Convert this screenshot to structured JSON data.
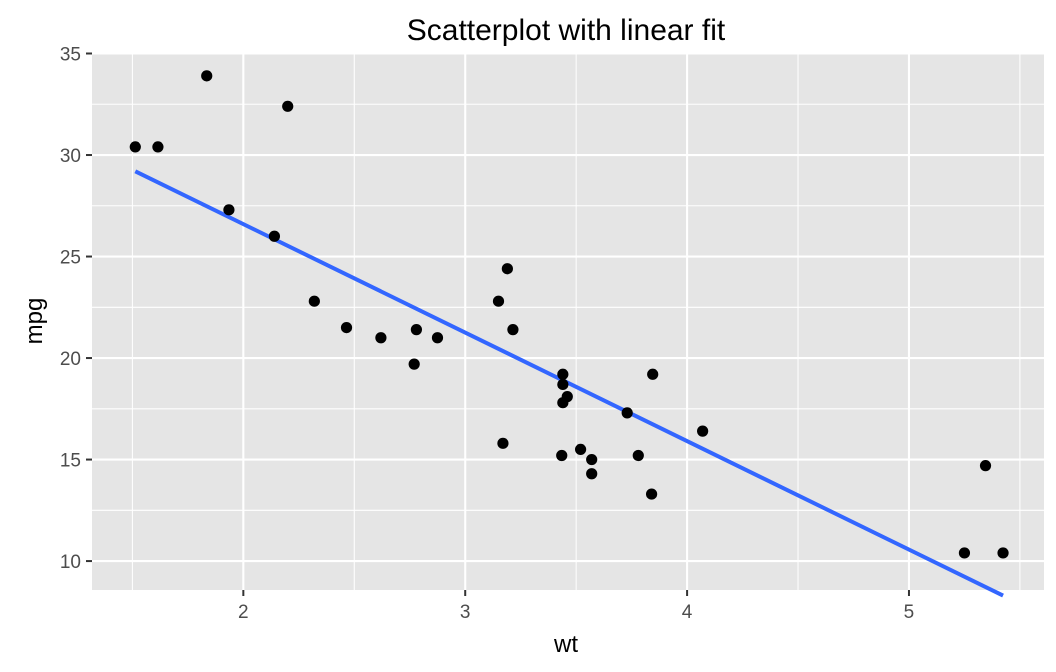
{
  "chart_data": {
    "type": "scatter",
    "title": "Scatterplot with linear fit",
    "xlabel": "wt",
    "ylabel": "mpg",
    "xlim": [
      1.3179,
      5.6086
    ],
    "ylim": [
      8.575,
      35.025
    ],
    "x_ticks": [
      2,
      3,
      4,
      5
    ],
    "y_ticks": [
      10,
      15,
      20,
      25,
      30,
      35
    ],
    "grid": true,
    "legend": "none",
    "colors": {
      "panel": "#e5e5e5",
      "points": "#000000",
      "fit_line": "#3366ff"
    },
    "series": [
      {
        "values": [
          {
            "x": 2.62,
            "y": 21.0
          },
          {
            "x": 2.875,
            "y": 21.0
          },
          {
            "x": 2.32,
            "y": 22.8
          },
          {
            "x": 3.215,
            "y": 21.4
          },
          {
            "x": 3.44,
            "y": 18.7
          },
          {
            "x": 3.46,
            "y": 18.1
          },
          {
            "x": 3.57,
            "y": 14.3
          },
          {
            "x": 3.19,
            "y": 24.4
          },
          {
            "x": 3.15,
            "y": 22.8
          },
          {
            "x": 3.44,
            "y": 19.2
          },
          {
            "x": 3.44,
            "y": 17.8
          },
          {
            "x": 4.07,
            "y": 16.4
          },
          {
            "x": 3.73,
            "y": 17.3
          },
          {
            "x": 3.78,
            "y": 15.2
          },
          {
            "x": 5.25,
            "y": 10.4
          },
          {
            "x": 5.424,
            "y": 10.4
          },
          {
            "x": 5.345,
            "y": 14.7
          },
          {
            "x": 2.2,
            "y": 32.4
          },
          {
            "x": 1.615,
            "y": 30.4
          },
          {
            "x": 1.835,
            "y": 33.9
          },
          {
            "x": 2.465,
            "y": 21.5
          },
          {
            "x": 3.52,
            "y": 15.5
          },
          {
            "x": 3.435,
            "y": 15.2
          },
          {
            "x": 3.84,
            "y": 13.3
          },
          {
            "x": 3.845,
            "y": 19.2
          },
          {
            "x": 1.935,
            "y": 27.3
          },
          {
            "x": 2.14,
            "y": 26.0
          },
          {
            "x": 1.513,
            "y": 30.4
          },
          {
            "x": 3.17,
            "y": 15.8
          },
          {
            "x": 2.77,
            "y": 19.7
          },
          {
            "x": 3.57,
            "y": 15.0
          },
          {
            "x": 2.78,
            "y": 21.4
          }
        ]
      }
    ],
    "fit": {
      "method": "linear",
      "intercept": 37.285,
      "slope": -5.344,
      "x_range": [
        1.513,
        5.424
      ]
    }
  }
}
